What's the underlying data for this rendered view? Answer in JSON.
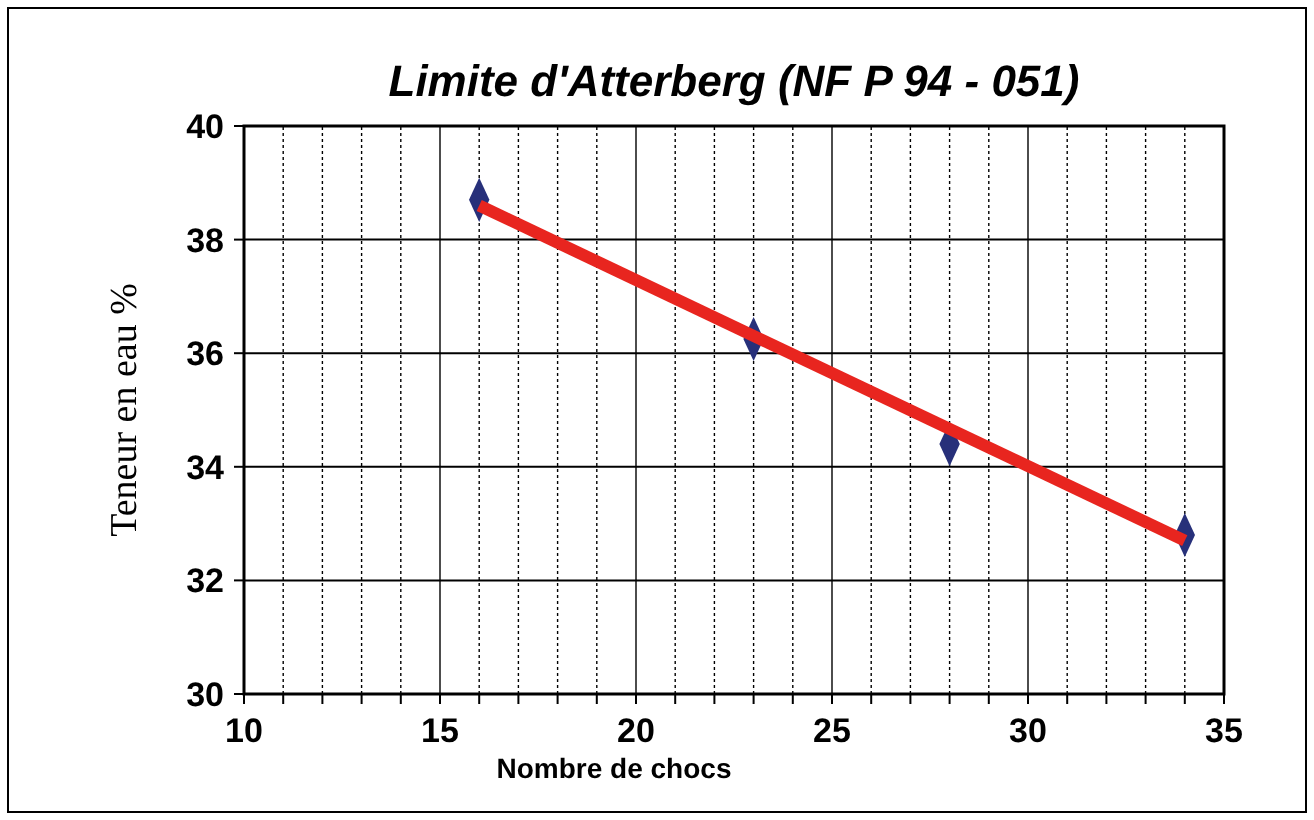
{
  "chart_data": {
    "type": "scatter",
    "title": "Limite d'Atterberg (NF P 94 - 051)",
    "xlabel": "Nombre de chocs",
    "ylabel": "Teneur en eau %",
    "series": [
      {
        "color": "#27307a",
        "marker": "diamond",
        "x": [
          16,
          23,
          28,
          34
        ],
        "values": [
          38.7,
          36.25,
          34.4,
          32.8
        ]
      },
      {
        "type": "line",
        "color": "#e8251f",
        "marker": "none",
        "line_style": "solid",
        "x": [
          16,
          34
        ],
        "values": [
          38.6,
          32.7
        ]
      }
    ],
    "xlim": [
      10,
      35
    ],
    "ylim": [
      30,
      40
    ],
    "xticks": [
      10,
      {
        "value": 11,
        "label": null
      },
      {
        "value": 12,
        "label": null
      },
      {
        "value": 13,
        "label": null
      },
      {
        "value": 14,
        "label": null
      },
      15,
      {
        "value": 16,
        "label": null
      },
      {
        "value": 17,
        "label": null
      },
      {
        "value": 18,
        "label": null
      },
      {
        "value": 19,
        "label": null
      },
      20,
      {
        "value": 21,
        "label": null
      },
      {
        "value": 22,
        "label": null
      },
      {
        "value": 23,
        "label": null
      },
      {
        "value": 24,
        "label": null
      },
      25,
      {
        "value": 26,
        "label": null
      },
      {
        "value": 27,
        "label": null
      },
      {
        "value": 28,
        "label": null
      },
      {
        "value": 29,
        "label": null
      },
      30,
      {
        "value": 31,
        "label": null
      },
      {
        "value": 32,
        "label": null
      },
      {
        "value": 33,
        "label": null
      },
      {
        "value": 34,
        "label": null
      },
      35
    ],
    "yticks": [
      30,
      32,
      34,
      36,
      38,
      40
    ],
    "grid": true
  }
}
